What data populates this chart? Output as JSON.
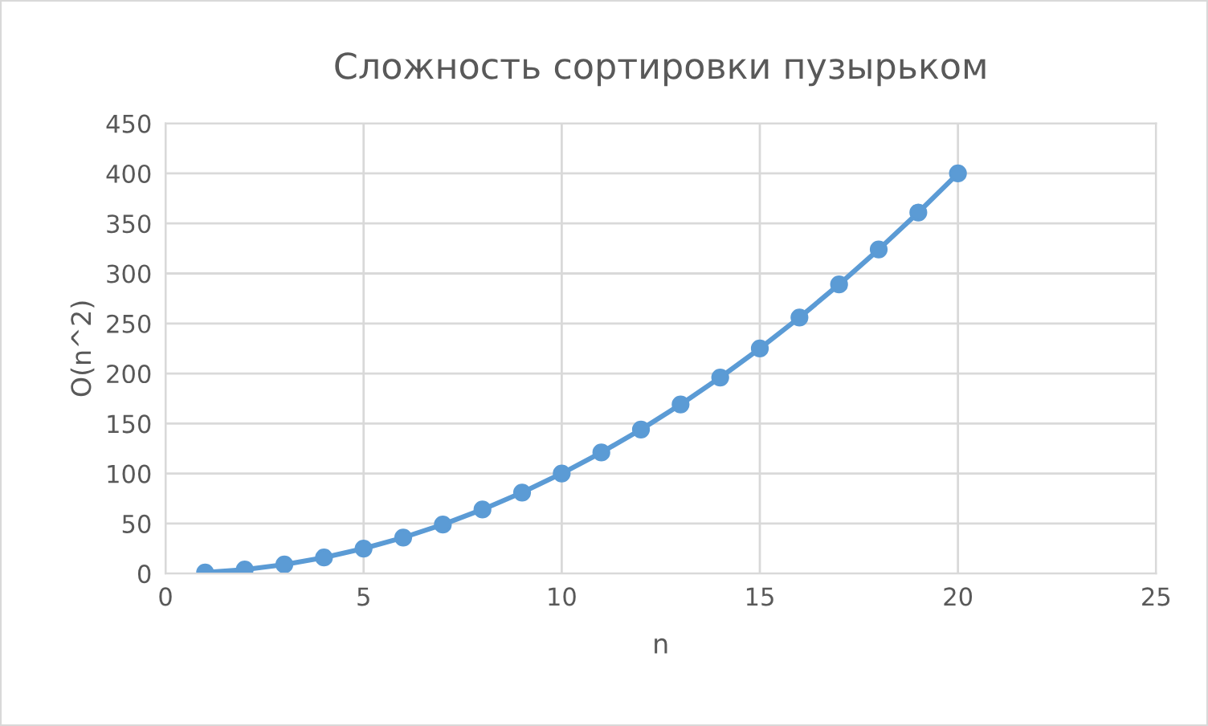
{
  "chart_data": {
    "type": "line",
    "title": "Сложность сортировки пузырьком",
    "xlabel": "n",
    "ylabel": "O(n^2)",
    "x": [
      1,
      2,
      3,
      4,
      5,
      6,
      7,
      8,
      9,
      10,
      11,
      12,
      13,
      14,
      15,
      16,
      17,
      18,
      19,
      20
    ],
    "series": [
      {
        "color": "#5b9bd5",
        "values": [
          1,
          4,
          9,
          16,
          25,
          36,
          49,
          64,
          81,
          100,
          121,
          144,
          169,
          196,
          225,
          256,
          289,
          324,
          361,
          400
        ]
      }
    ],
    "xlim": [
      0,
      25
    ],
    "xticks": [
      0,
      5,
      10,
      15,
      20,
      25
    ],
    "ylim": [
      0,
      450
    ],
    "yticks": [
      0,
      50,
      100,
      150,
      200,
      250,
      300,
      350,
      400,
      450
    ],
    "grid": true,
    "marker": "circle",
    "line_style": "solid",
    "legend": false
  }
}
